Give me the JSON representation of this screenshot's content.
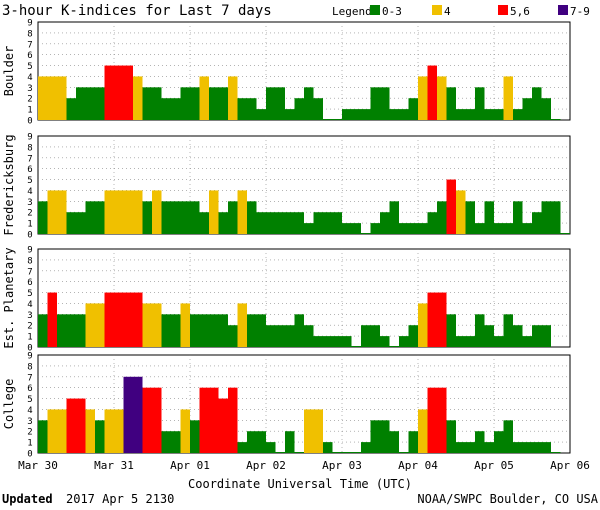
{
  "chart_data": {
    "type": "bar",
    "title": "3-hour K-indices for Last 7 days",
    "legend": {
      "title": "Legend:",
      "entries": [
        {
          "label": "0-3",
          "color": "#008000"
        },
        {
          "label": "4",
          "color": "#f0c000"
        },
        {
          "label": "5,6",
          "color": "#ff0000"
        },
        {
          "label": "7-9",
          "color": "#400080"
        }
      ]
    },
    "xlabel": "Coordinate Universal Time (UTC)",
    "x_ticks": [
      "Mar 30",
      "Mar 31",
      "Apr 01",
      "Apr 02",
      "Apr 03",
      "Apr 04",
      "Apr 05",
      "Apr 06"
    ],
    "ylim": [
      0,
      9
    ],
    "y_ticks": [
      "0",
      "1",
      "2",
      "3",
      "4",
      "5",
      "6",
      "7",
      "8",
      "9"
    ],
    "grid": true,
    "bins_per_day": 8,
    "panels": [
      {
        "name": "Boulder",
        "values": [
          4,
          4,
          4,
          2,
          3,
          3,
          3,
          5,
          5,
          5,
          4,
          3,
          3,
          2,
          2,
          3,
          3,
          4,
          3,
          3,
          4,
          2,
          2,
          1,
          3,
          3,
          1,
          2,
          3,
          2,
          0,
          0,
          1,
          1,
          1,
          3,
          3,
          1,
          1,
          2,
          4,
          5,
          4,
          3,
          1,
          1,
          3,
          1,
          1,
          4,
          1,
          2,
          3,
          2,
          0
        ]
      },
      {
        "name": "Fredericksburg",
        "values": [
          3,
          4,
          4,
          2,
          2,
          3,
          3,
          4,
          4,
          4,
          4,
          3,
          4,
          3,
          3,
          3,
          3,
          2,
          4,
          2,
          3,
          4,
          3,
          2,
          2,
          2,
          2,
          2,
          1,
          2,
          2,
          2,
          1,
          1,
          0,
          1,
          2,
          3,
          1,
          1,
          1,
          2,
          3,
          5,
          4,
          3,
          1,
          3,
          1,
          1,
          3,
          1,
          2,
          3,
          3,
          0
        ]
      },
      {
        "name": "Est. Planetary",
        "values": [
          3,
          5,
          3,
          3,
          3,
          4,
          4,
          5,
          5,
          5,
          5,
          4,
          4,
          3,
          3,
          4,
          3,
          3,
          3,
          3,
          2,
          4,
          3,
          3,
          2,
          2,
          2,
          3,
          2,
          1,
          1,
          1,
          1,
          0,
          2,
          2,
          1,
          0,
          1,
          2,
          4,
          5,
          5,
          3,
          1,
          1,
          3,
          2,
          1,
          3,
          2,
          1,
          2,
          2
        ]
      },
      {
        "name": "College",
        "values": [
          3,
          4,
          4,
          5,
          5,
          4,
          3,
          4,
          4,
          7,
          7,
          6,
          6,
          2,
          2,
          4,
          3,
          6,
          6,
          5,
          6,
          1,
          2,
          2,
          1,
          0,
          2,
          0,
          4,
          4,
          1,
          0,
          0,
          0,
          1,
          3,
          3,
          2,
          0,
          2,
          4,
          6,
          6,
          3,
          1,
          1,
          2,
          1,
          2,
          3,
          1,
          1,
          1,
          1,
          0
        ]
      }
    ]
  },
  "footer": {
    "updated_label": "Updated",
    "updated_value": "2017 Apr  5 2130",
    "credit": "NOAA/SWPC Boulder, CO USA"
  }
}
